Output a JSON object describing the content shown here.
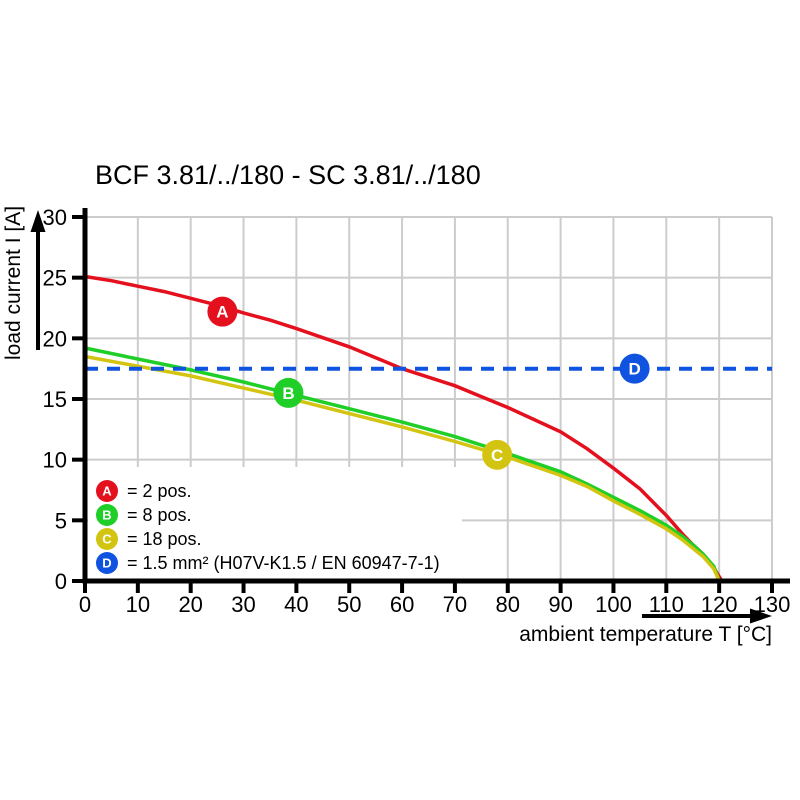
{
  "window": {
    "background_color": "#ffffff"
  },
  "chart_data": {
    "type": "line",
    "title": "BCF 3.81/../180 - SC 3.81/../180",
    "xlabel": "ambient temperature T [°C]",
    "ylabel": "load current I [A]",
    "xlim": [
      0,
      130
    ],
    "ylim": [
      0,
      30
    ],
    "x_ticks": [
      0,
      10,
      20,
      30,
      40,
      50,
      60,
      70,
      80,
      90,
      100,
      110,
      120,
      130
    ],
    "y_ticks": [
      0,
      5,
      10,
      15,
      20,
      25,
      30
    ],
    "grid": true,
    "grid_color": "#cccccc",
    "axis_color": "#000000",
    "marker_text_color": "#ffffff",
    "legend_position": "inside-lower-left",
    "series": [
      {
        "letter": "A",
        "legend_label": "= 2 pos.",
        "color": "#e4101e",
        "line_style": "solid",
        "marker_at": {
          "x": 26,
          "y": 22.2
        },
        "points": [
          [
            0,
            25.1
          ],
          [
            5,
            24.75
          ],
          [
            10,
            24.3
          ],
          [
            15,
            23.85
          ],
          [
            20,
            23.3
          ],
          [
            25,
            22.75
          ],
          [
            30,
            22.1
          ],
          [
            35,
            21.5
          ],
          [
            40,
            20.8
          ],
          [
            45,
            20.05
          ],
          [
            50,
            19.3
          ],
          [
            55,
            18.4
          ],
          [
            60,
            17.5
          ],
          [
            65,
            16.8
          ],
          [
            70,
            16.1
          ],
          [
            75,
            15.2
          ],
          [
            80,
            14.3
          ],
          [
            85,
            13.3
          ],
          [
            90,
            12.3
          ],
          [
            95,
            10.9
          ],
          [
            100,
            9.3
          ],
          [
            105,
            7.6
          ],
          [
            110,
            5.4
          ],
          [
            113,
            3.9
          ],
          [
            115,
            3.0
          ],
          [
            117,
            2.2
          ],
          [
            119,
            1.1
          ],
          [
            120.5,
            0
          ]
        ]
      },
      {
        "letter": "B",
        "legend_label": "= 8 pos.",
        "color": "#1fce27",
        "line_style": "solid",
        "marker_at": {
          "x": 38.5,
          "y": 15.5
        },
        "points": [
          [
            0,
            19.2
          ],
          [
            10,
            18.3
          ],
          [
            20,
            17.4
          ],
          [
            30,
            16.4
          ],
          [
            40,
            15.3
          ],
          [
            50,
            14.2
          ],
          [
            60,
            13.1
          ],
          [
            70,
            11.9
          ],
          [
            80,
            10.5
          ],
          [
            90,
            9.0
          ],
          [
            95,
            8.0
          ],
          [
            100,
            6.9
          ],
          [
            105,
            5.8
          ],
          [
            110,
            4.6
          ],
          [
            113,
            3.7
          ],
          [
            115,
            3.0
          ],
          [
            117,
            2.2
          ],
          [
            119,
            1.2
          ],
          [
            120,
            0
          ]
        ]
      },
      {
        "letter": "C",
        "legend_label": "= 18 pos.",
        "color": "#d2c410",
        "line_style": "solid",
        "marker_at": {
          "x": 78,
          "y": 10.4
        },
        "points": [
          [
            0,
            18.5
          ],
          [
            10,
            17.7
          ],
          [
            20,
            16.9
          ],
          [
            30,
            15.9
          ],
          [
            40,
            14.9
          ],
          [
            50,
            13.8
          ],
          [
            60,
            12.7
          ],
          [
            70,
            11.5
          ],
          [
            80,
            10.2
          ],
          [
            90,
            8.7
          ],
          [
            95,
            7.8
          ],
          [
            100,
            6.6
          ],
          [
            105,
            5.5
          ],
          [
            110,
            4.3
          ],
          [
            113,
            3.4
          ],
          [
            115,
            2.7
          ],
          [
            117,
            2.0
          ],
          [
            119,
            1.0
          ],
          [
            120,
            0
          ]
        ]
      },
      {
        "letter": "D",
        "legend_label": "= 1.5 mm² (H07V-K1.5 / EN 60947-7-1)",
        "color": "#0f53e0",
        "line_style": "dashed",
        "marker_at": {
          "x": 104,
          "y": 17.5
        },
        "points": [
          [
            0,
            17.5
          ],
          [
            130,
            17.5
          ]
        ]
      }
    ]
  }
}
